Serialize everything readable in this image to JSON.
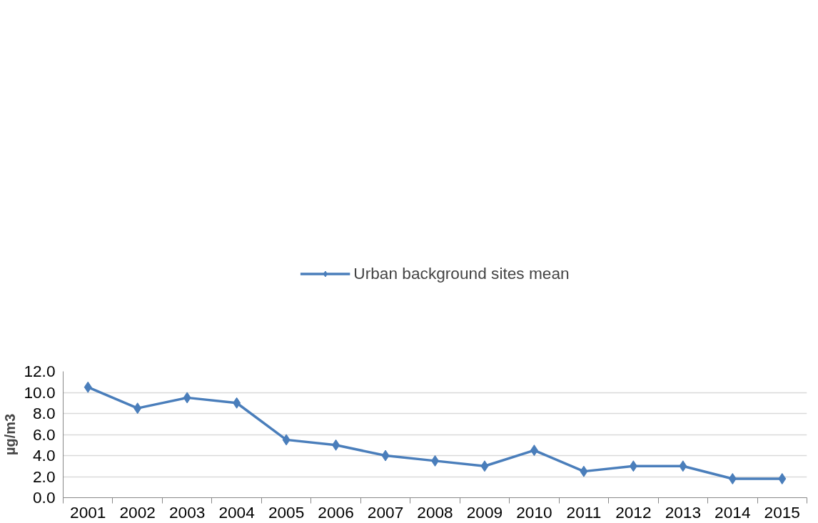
{
  "chart_data": {
    "type": "line",
    "ylabel": "µg/m3",
    "categories": [
      "2001",
      "2002",
      "2003",
      "2004",
      "2005",
      "2006",
      "2007",
      "2008",
      "2009",
      "2010",
      "2011",
      "2012",
      "2013",
      "2014",
      "2015"
    ],
    "series": [
      {
        "name": "Urban background sites mean",
        "color": "#4a7ebb",
        "values": [
          10.5,
          8.5,
          9.5,
          9.0,
          5.5,
          5.0,
          4.0,
          3.5,
          3.0,
          4.5,
          2.5,
          3.0,
          3.0,
          1.8,
          1.8
        ]
      }
    ],
    "ylim": [
      0,
      12
    ],
    "yticks": [
      {
        "value": 0,
        "label": "0.0"
      },
      {
        "value": 2,
        "label": "2.0"
      },
      {
        "value": 4,
        "label": "4.0"
      },
      {
        "value": 6,
        "label": "6.0"
      },
      {
        "value": 8,
        "label": "8.0"
      },
      {
        "value": 10,
        "label": "10.0"
      },
      {
        "value": 12,
        "label": "12.0"
      }
    ],
    "grid": "y",
    "legend": "top",
    "marker": "diamond",
    "line_style": "solid"
  }
}
